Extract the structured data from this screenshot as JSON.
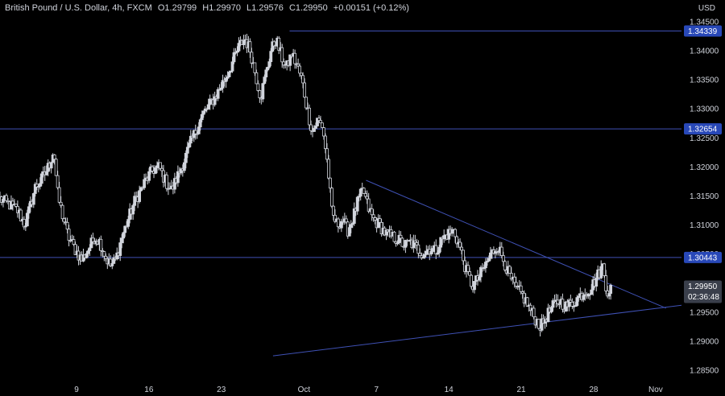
{
  "legend": {
    "symbol": "British Pound / U.S. Dollar, 4h, FXCM",
    "open": "O1.29799",
    "high": "H1.29970",
    "low": "L1.29576",
    "close": "C1.29950",
    "change": "+0.00151 (+0.12%)"
  },
  "currency_label": "USD",
  "colors": {
    "background": "#000000",
    "candle": "#d1d4dc",
    "level_line": "#3f51b5",
    "tag": "#2848b8",
    "price_tag": "#3a3f4b"
  },
  "chart_data": {
    "type": "candlestick",
    "ylim": [
      1.2835,
      1.3465
    ],
    "price_ticks": [
      "1.34500",
      "1.34000",
      "1.33500",
      "1.33000",
      "1.32500",
      "1.32000",
      "1.31500",
      "1.31000",
      "1.30500",
      "1.30000",
      "1.29500",
      "1.29000",
      "1.28500"
    ],
    "time_ticks": [
      {
        "label": "9",
        "x": 9
      },
      {
        "label": "16",
        "x": 16
      },
      {
        "label": "23",
        "x": 23
      },
      {
        "label": "Oct",
        "x": 31
      },
      {
        "label": "7",
        "x": 38
      },
      {
        "label": "14",
        "x": 45
      },
      {
        "label": "21",
        "x": 52
      },
      {
        "label": "28",
        "x": 59
      },
      {
        "label": "Nov",
        "x": 65
      }
    ],
    "x_range": [
      1.6,
      67.5
    ],
    "levels": [
      {
        "price": 1.34339,
        "label": "1.34339",
        "x_start": 29.6
      },
      {
        "price": 1.32654,
        "label": "1.32654",
        "x_start": 1.6
      },
      {
        "price": 1.30443,
        "label": "1.30443",
        "x_start": 1.6
      }
    ],
    "current_price": {
      "label": "1.29950",
      "countdown": "02:36:48",
      "price": 1.2995
    },
    "trendlines": [
      {
        "from": [
          37.0,
          1.3177
        ],
        "to": [
          66.0,
          1.2957
        ]
      },
      {
        "from": [
          28.0,
          1.2875
        ],
        "to": [
          67.5,
          1.2962
        ]
      }
    ],
    "close_path": [
      [
        1.6,
        1.3145
      ],
      [
        2.5,
        1.3135
      ],
      [
        3.3,
        1.3125
      ],
      [
        4.0,
        1.31
      ],
      [
        4.5,
        1.313
      ],
      [
        5.0,
        1.3165
      ],
      [
        5.5,
        1.3175
      ],
      [
        6.0,
        1.319
      ],
      [
        6.4,
        1.3205
      ],
      [
        6.8,
        1.323
      ],
      [
        7.2,
        1.315
      ],
      [
        7.6,
        1.312
      ],
      [
        8.2,
        1.308
      ],
      [
        8.8,
        1.306
      ],
      [
        9.5,
        1.304
      ],
      [
        10.2,
        1.306
      ],
      [
        10.8,
        1.308
      ],
      [
        11.3,
        1.307
      ],
      [
        11.8,
        1.3045
      ],
      [
        12.3,
        1.303
      ],
      [
        12.8,
        1.304
      ],
      [
        13.4,
        1.308
      ],
      [
        14.0,
        1.311
      ],
      [
        14.6,
        1.314
      ],
      [
        15.2,
        1.316
      ],
      [
        15.8,
        1.318
      ],
      [
        16.4,
        1.3195
      ],
      [
        17.0,
        1.32
      ],
      [
        17.6,
        1.3175
      ],
      [
        18.2,
        1.316
      ],
      [
        18.8,
        1.3185
      ],
      [
        19.4,
        1.321
      ],
      [
        20.0,
        1.324
      ],
      [
        20.6,
        1.3265
      ],
      [
        21.2,
        1.329
      ],
      [
        21.8,
        1.3305
      ],
      [
        22.4,
        1.332
      ],
      [
        23.0,
        1.334
      ],
      [
        23.6,
        1.336
      ],
      [
        24.2,
        1.3385
      ],
      [
        24.8,
        1.341
      ],
      [
        25.3,
        1.342
      ],
      [
        25.8,
        1.34
      ],
      [
        26.3,
        1.336
      ],
      [
        26.8,
        1.332
      ],
      [
        27.3,
        1.336
      ],
      [
        27.8,
        1.34
      ],
      [
        28.3,
        1.342
      ],
      [
        28.8,
        1.339
      ],
      [
        29.3,
        1.337
      ],
      [
        29.8,
        1.3395
      ],
      [
        30.3,
        1.3375
      ],
      [
        30.8,
        1.335
      ],
      [
        31.3,
        1.33
      ],
      [
        31.8,
        1.326
      ],
      [
        32.3,
        1.328
      ],
      [
        32.8,
        1.327
      ],
      [
        33.3,
        1.32
      ],
      [
        33.7,
        1.312
      ],
      [
        34.2,
        1.31
      ],
      [
        34.7,
        1.311
      ],
      [
        35.2,
        1.309
      ],
      [
        35.7,
        1.311
      ],
      [
        36.2,
        1.314
      ],
      [
        36.7,
        1.316
      ],
      [
        37.2,
        1.313
      ],
      [
        37.7,
        1.311
      ],
      [
        38.3,
        1.31
      ],
      [
        38.9,
        1.3085
      ],
      [
        39.5,
        1.308
      ],
      [
        40.1,
        1.3075
      ],
      [
        40.7,
        1.3065
      ],
      [
        41.3,
        1.307
      ],
      [
        41.9,
        1.306
      ],
      [
        42.5,
        1.305
      ],
      [
        43.1,
        1.306
      ],
      [
        43.7,
        1.3055
      ],
      [
        44.3,
        1.3075
      ],
      [
        44.9,
        1.3085
      ],
      [
        45.5,
        1.309
      ],
      [
        46.1,
        1.306
      ],
      [
        46.7,
        1.302
      ],
      [
        47.3,
        1.2995
      ],
      [
        47.9,
        1.301
      ],
      [
        48.5,
        1.303
      ],
      [
        49.1,
        1.305
      ],
      [
        49.7,
        1.3065
      ],
      [
        50.3,
        1.304
      ],
      [
        50.9,
        1.301
      ],
      [
        51.5,
        1.299
      ],
      [
        52.1,
        1.298
      ],
      [
        52.7,
        1.296
      ],
      [
        53.3,
        1.294
      ],
      [
        53.9,
        1.2925
      ],
      [
        54.5,
        1.2945
      ],
      [
        55.1,
        1.296
      ],
      [
        55.7,
        1.297
      ],
      [
        56.3,
        1.296
      ],
      [
        56.9,
        1.2965
      ],
      [
        57.5,
        1.2975
      ],
      [
        58.1,
        1.2985
      ],
      [
        58.7,
        1.299
      ],
      [
        59.3,
        1.301
      ],
      [
        59.9,
        1.303
      ],
      [
        60.3,
        1.2985
      ],
      [
        60.8,
        1.2995
      ]
    ]
  }
}
